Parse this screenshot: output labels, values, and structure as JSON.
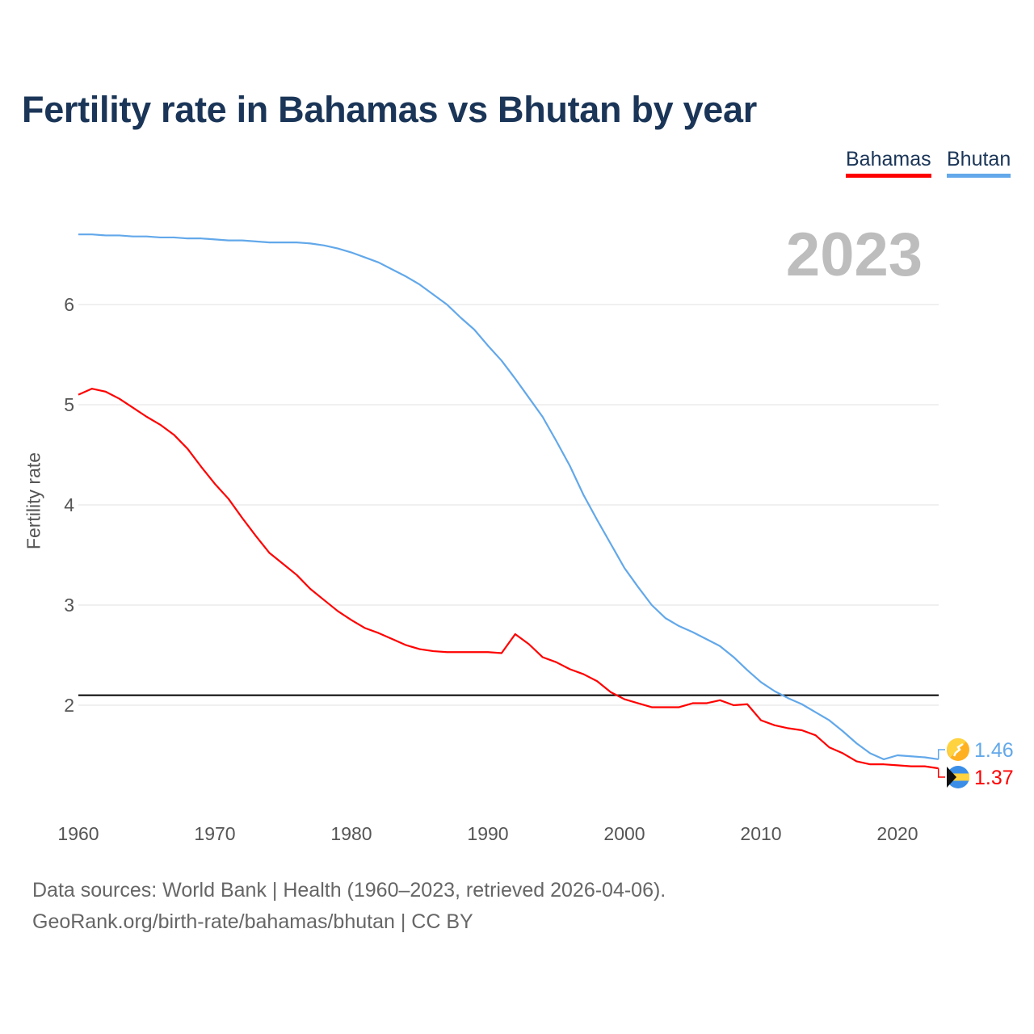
{
  "chart_data": {
    "type": "line",
    "title": "Fertility rate in Bahamas vs Bhutan by year",
    "ylabel": "Fertility rate",
    "xlabel": "",
    "year_badge": "2023",
    "xlim": [
      1960,
      2023
    ],
    "ylim": [
      1.1,
      6.8
    ],
    "x_ticks": [
      1960,
      1970,
      1980,
      1990,
      2000,
      2010,
      2020
    ],
    "y_ticks": [
      2,
      3,
      4,
      5,
      6
    ],
    "grid": true,
    "legend_position": "top-right",
    "reference_line": 2.1,
    "x": [
      1960,
      1961,
      1962,
      1963,
      1964,
      1965,
      1966,
      1967,
      1968,
      1969,
      1970,
      1971,
      1972,
      1973,
      1974,
      1975,
      1976,
      1977,
      1978,
      1979,
      1980,
      1981,
      1982,
      1983,
      1984,
      1985,
      1986,
      1987,
      1988,
      1989,
      1990,
      1991,
      1992,
      1993,
      1994,
      1995,
      1996,
      1997,
      1998,
      1999,
      2000,
      2001,
      2002,
      2003,
      2004,
      2005,
      2006,
      2007,
      2008,
      2009,
      2010,
      2011,
      2012,
      2013,
      2014,
      2015,
      2016,
      2017,
      2018,
      2019,
      2020,
      2021,
      2022,
      2023
    ],
    "series": [
      {
        "name": "Bahamas",
        "color": "#ff0000",
        "end_label": "1.37",
        "values": [
          5.1,
          5.16,
          5.13,
          5.06,
          4.97,
          4.88,
          4.8,
          4.7,
          4.56,
          4.38,
          4.21,
          4.06,
          3.87,
          3.69,
          3.52,
          3.41,
          3.3,
          3.16,
          3.05,
          2.94,
          2.85,
          2.77,
          2.72,
          2.66,
          2.6,
          2.56,
          2.54,
          2.53,
          2.53,
          2.53,
          2.53,
          2.52,
          2.71,
          2.61,
          2.48,
          2.43,
          2.36,
          2.31,
          2.24,
          2.13,
          2.06,
          2.02,
          1.98,
          1.98,
          1.98,
          2.02,
          2.02,
          2.05,
          2.0,
          2.01,
          1.85,
          1.8,
          1.77,
          1.75,
          1.7,
          1.58,
          1.52,
          1.44,
          1.41,
          1.41,
          1.4,
          1.39,
          1.39,
          1.37
        ]
      },
      {
        "name": "Bhutan",
        "color": "#62a8ea",
        "end_label": "1.46",
        "values": [
          6.7,
          6.7,
          6.69,
          6.69,
          6.68,
          6.68,
          6.67,
          6.67,
          6.66,
          6.66,
          6.65,
          6.64,
          6.64,
          6.63,
          6.62,
          6.62,
          6.62,
          6.61,
          6.59,
          6.56,
          6.52,
          6.47,
          6.42,
          6.35,
          6.28,
          6.2,
          6.1,
          6.0,
          5.87,
          5.75,
          5.59,
          5.44,
          5.26,
          5.07,
          4.88,
          4.64,
          4.39,
          4.1,
          3.85,
          3.61,
          3.37,
          3.18,
          3.0,
          2.87,
          2.79,
          2.73,
          2.66,
          2.59,
          2.48,
          2.35,
          2.23,
          2.14,
          2.07,
          2.01,
          1.93,
          1.85,
          1.74,
          1.62,
          1.52,
          1.46,
          1.5,
          1.49,
          1.48,
          1.46
        ]
      }
    ]
  },
  "source": {
    "line1": "Data sources: World Bank | Health (1960–2023, retrieved 2026-04-06).",
    "line2": "GeoRank.org/birth-rate/bahamas/bhutan | CC BY"
  }
}
